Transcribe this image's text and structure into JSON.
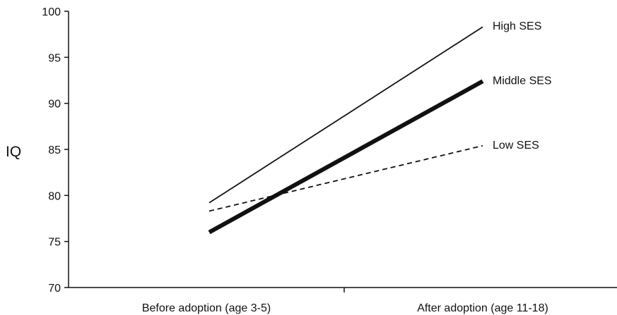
{
  "chart_data": {
    "type": "line",
    "title": "",
    "xlabel": "",
    "ylabel": "IQ",
    "categories": [
      "Before adoption (age 3-5)",
      "After adoption (age 11-18)"
    ],
    "ylim": [
      70,
      100
    ],
    "yticks": [
      70,
      75,
      80,
      85,
      90,
      95,
      100
    ],
    "grid": false,
    "legend": "inline labels at right end of lines",
    "series": [
      {
        "name": "High SES",
        "values": [
          79.2,
          98.3
        ],
        "style": "thin-solid"
      },
      {
        "name": "Middle SES",
        "values": [
          76.0,
          92.4
        ],
        "style": "thick-solid"
      },
      {
        "name": "Low SES",
        "values": [
          78.3,
          85.4
        ],
        "style": "dashed"
      }
    ]
  }
}
